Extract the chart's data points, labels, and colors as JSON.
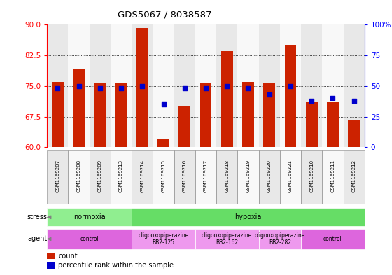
{
  "title": "GDS5067 / 8038587",
  "samples": [
    "GSM1169207",
    "GSM1169208",
    "GSM1169209",
    "GSM1169213",
    "GSM1169214",
    "GSM1169215",
    "GSM1169216",
    "GSM1169217",
    "GSM1169218",
    "GSM1169219",
    "GSM1169220",
    "GSM1169221",
    "GSM1169210",
    "GSM1169211",
    "GSM1169212"
  ],
  "counts": [
    76.0,
    79.2,
    75.8,
    75.8,
    89.2,
    62.0,
    70.0,
    75.8,
    83.5,
    76.0,
    75.8,
    85.0,
    71.0,
    71.0,
    66.5
  ],
  "percentiles": [
    48,
    50,
    48,
    48,
    50,
    35,
    48,
    48,
    50,
    48,
    43,
    50,
    38,
    40,
    38
  ],
  "ylim_left": [
    60,
    90
  ],
  "ylim_right": [
    0,
    100
  ],
  "yticks_left": [
    60,
    67.5,
    75,
    82.5,
    90
  ],
  "yticks_right": [
    0,
    25,
    50,
    75,
    100
  ],
  "bar_color": "#cc2200",
  "dot_color": "#0000cc",
  "stress_groups": [
    {
      "label": "normoxia",
      "start": 0,
      "end": 4,
      "color": "#90ee90"
    },
    {
      "label": "hypoxia",
      "start": 4,
      "end": 15,
      "color": "#66dd66"
    }
  ],
  "agent_groups": [
    {
      "label": "control",
      "start": 0,
      "end": 4,
      "color": "#dd66dd"
    },
    {
      "label": "oligooxopiperazine\nBB2-125",
      "start": 4,
      "end": 7,
      "color": "#ee99ee"
    },
    {
      "label": "oligooxopiperazine\nBB2-162",
      "start": 7,
      "end": 10,
      "color": "#ee99ee"
    },
    {
      "label": "oligooxopiperazine\nBB2-282",
      "start": 10,
      "end": 12,
      "color": "#ee99ee"
    },
    {
      "label": "control",
      "start": 12,
      "end": 15,
      "color": "#dd66dd"
    }
  ],
  "bar_width": 0.55,
  "col_bg_even": "#e8e8e8",
  "col_bg_odd": "#f8f8f8"
}
